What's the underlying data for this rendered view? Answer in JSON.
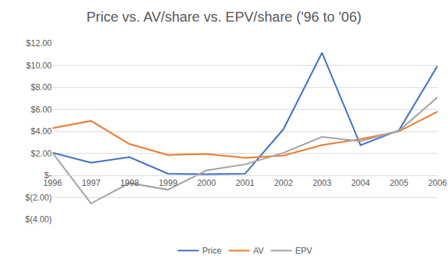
{
  "chart_data": {
    "type": "line",
    "title": "Price vs. AV/share vs. EPV/share ('96 to '06)",
    "categories": [
      "1996",
      "1997",
      "1998",
      "1999",
      "2000",
      "2001",
      "2002",
      "2003",
      "2004",
      "2005",
      "2006"
    ],
    "series": [
      {
        "name": "Price",
        "color": "#4472C4",
        "values": [
          2.05,
          1.15,
          1.65,
          0.15,
          0.1,
          0.15,
          4.2,
          11.15,
          2.75,
          4.1,
          9.95
        ]
      },
      {
        "name": "AV",
        "color": "#ED7D31",
        "values": [
          4.3,
          4.95,
          2.85,
          1.85,
          1.95,
          1.6,
          1.8,
          2.75,
          3.3,
          4.0,
          5.8
        ]
      },
      {
        "name": "EPV",
        "color": "#A5A5A5",
        "values": [
          2.05,
          -2.55,
          -0.7,
          -1.3,
          0.45,
          1.0,
          2.05,
          3.5,
          3.1,
          4.05,
          7.1
        ]
      }
    ],
    "ylim": [
      -4,
      12
    ],
    "yticks": [
      {
        "value": -4,
        "label": "$(4.00)"
      },
      {
        "value": -2,
        "label": "$(2.00)"
      },
      {
        "value": 0,
        "label": "$-"
      },
      {
        "value": 2,
        "label": "$2.00"
      },
      {
        "value": 4,
        "label": "$4.00"
      },
      {
        "value": 6,
        "label": "$6.00"
      },
      {
        "value": 8,
        "label": "$8.00"
      },
      {
        "value": 10,
        "label": "$10.00"
      },
      {
        "value": 12,
        "label": "$12.00"
      }
    ],
    "grid": true,
    "legend": "bottom"
  }
}
